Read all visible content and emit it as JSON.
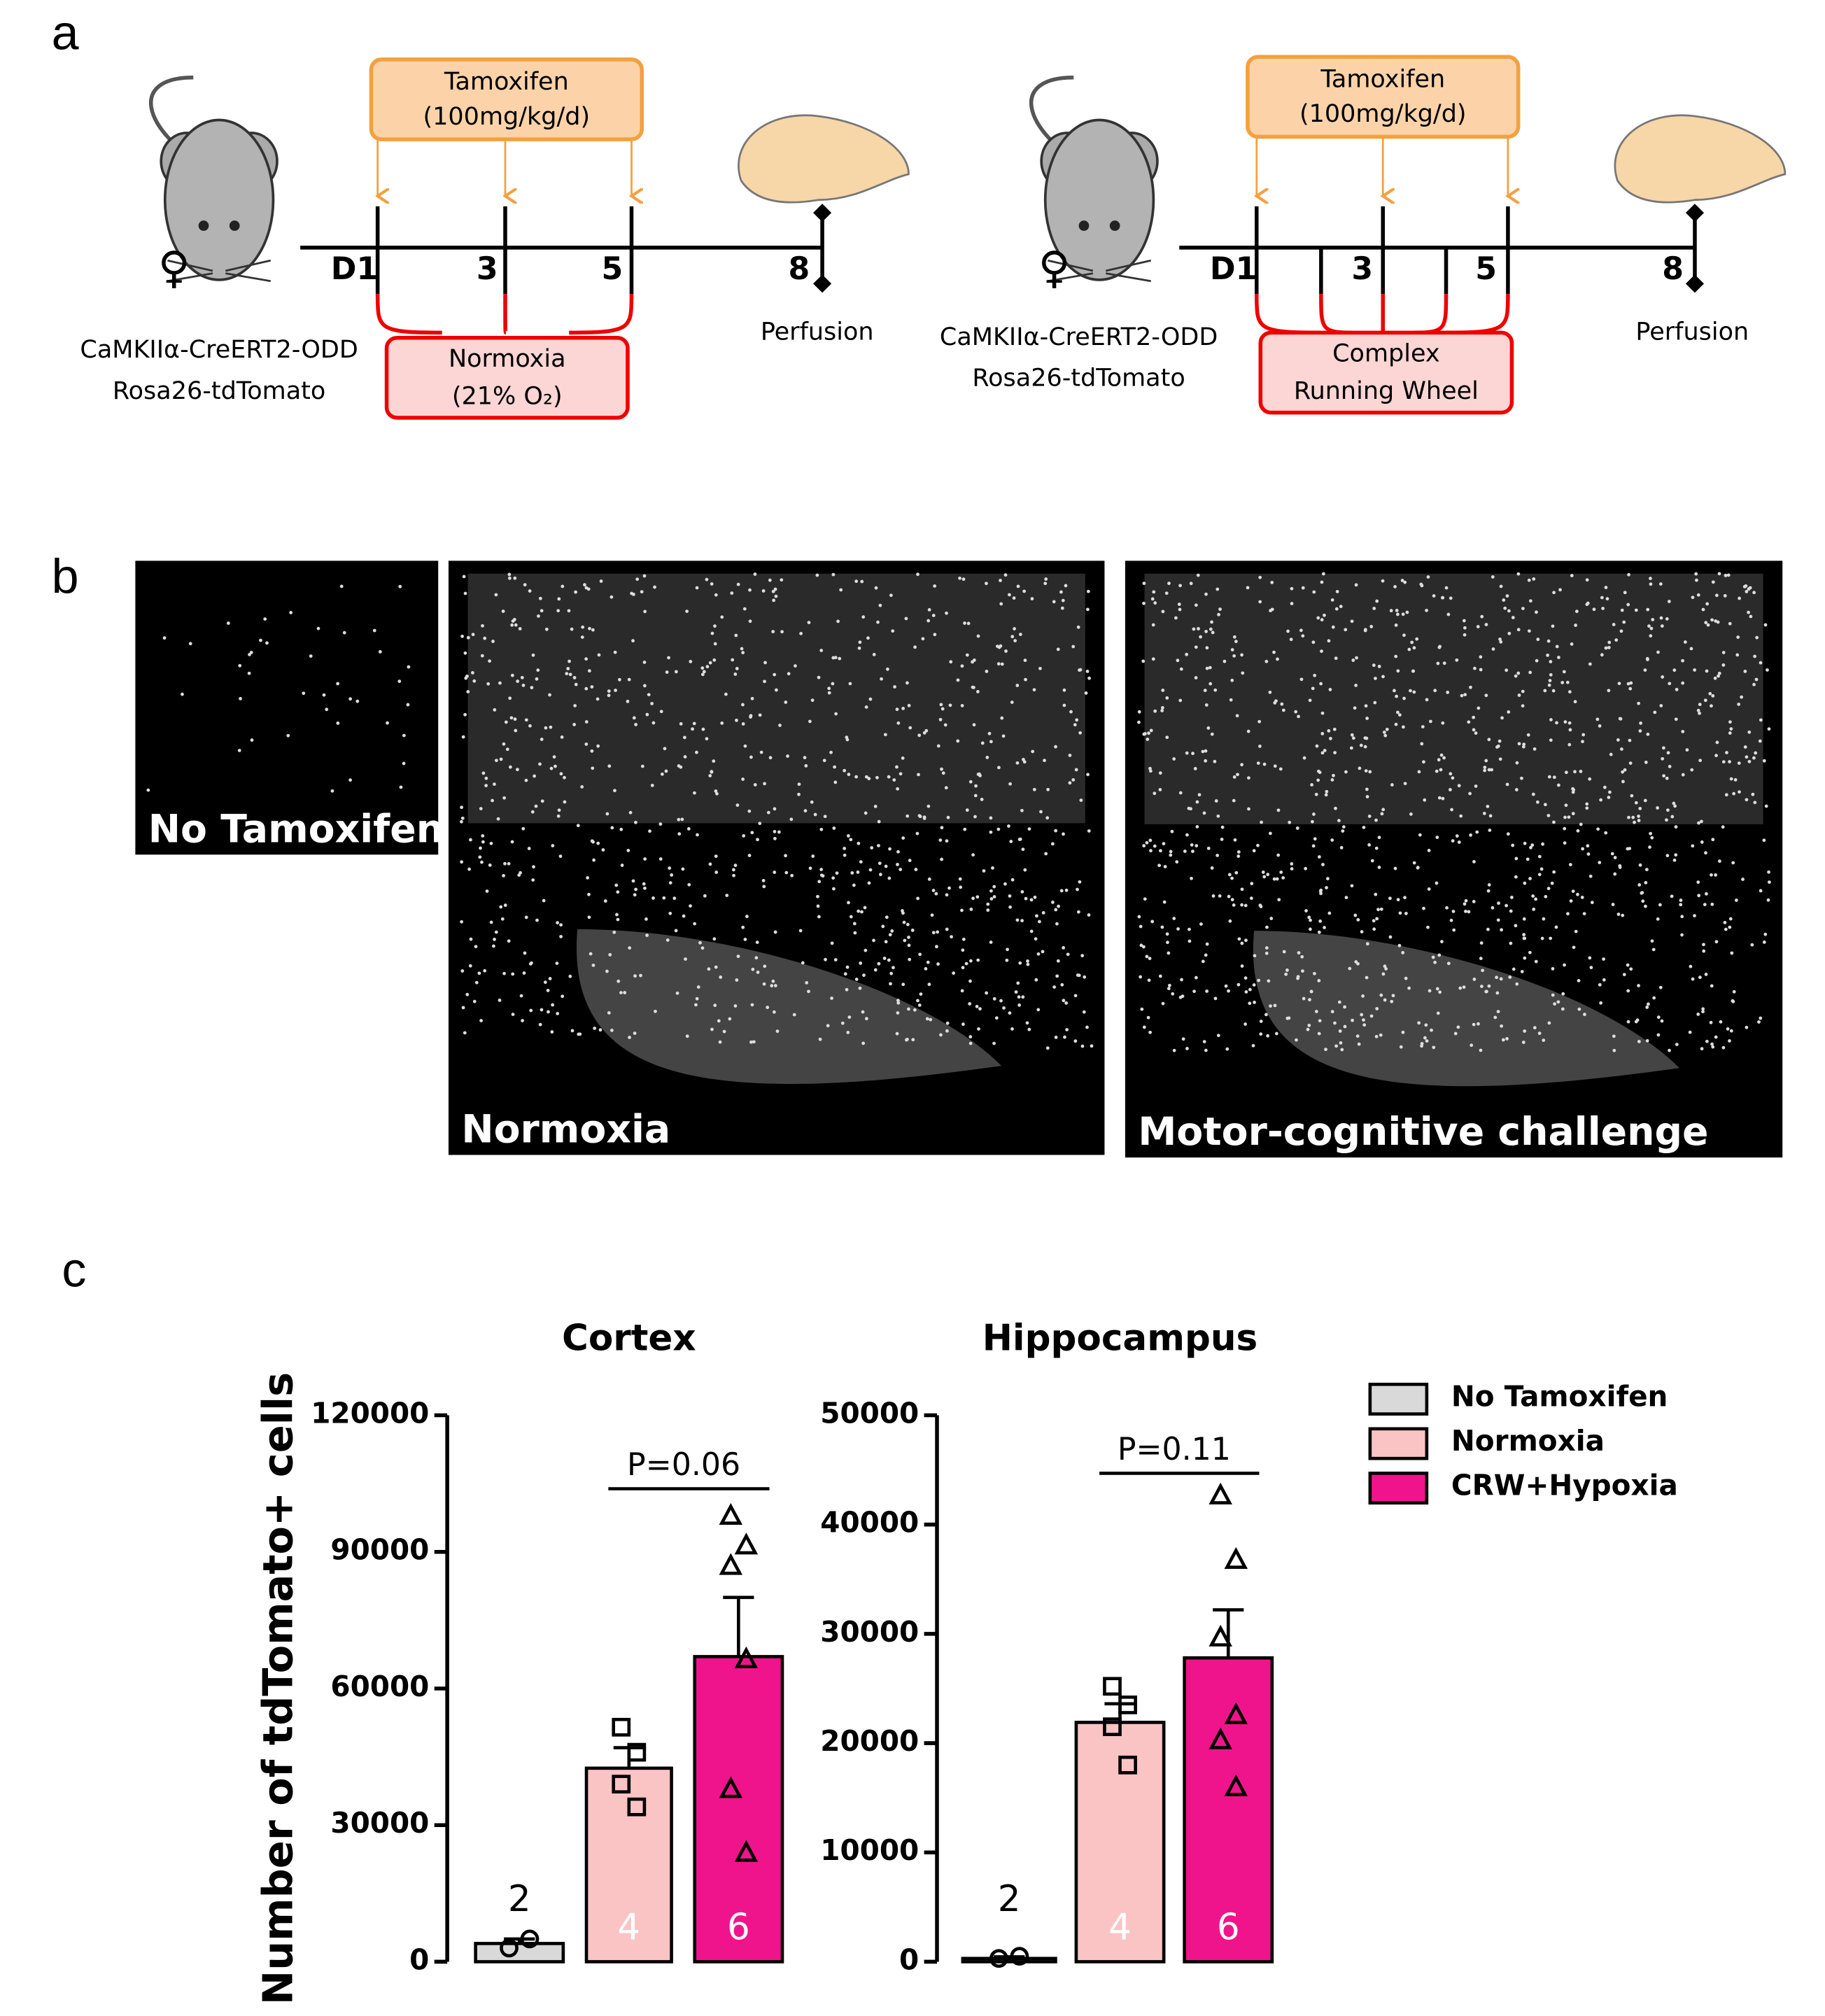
{
  "panels": {
    "a": "a",
    "b": "b",
    "c": "c"
  },
  "diagram": {
    "left": {
      "tamoxifen": "Tamoxifen",
      "dose": "(100mg/kg/d)",
      "days": [
        "D1",
        "3",
        "5",
        "8"
      ],
      "box_line1": "Normoxia",
      "box_line2": "(21% O₂)",
      "strain1": "CaMKIIα-CreERT2-ODD",
      "strain2": "Rosa26-tdTomato",
      "end": "Perfusion"
    },
    "right": {
      "tamoxifen": "Tamoxifen",
      "dose": "(100mg/kg/d)",
      "days": [
        "D1",
        "3",
        "5",
        "8"
      ],
      "box_line1": "Complex",
      "box_line2": "Running Wheel",
      "strain1": "CaMKIIα-CreERT2-ODD",
      "strain2": "Rosa26-tdTomato",
      "end": "Perfusion"
    }
  },
  "images": [
    "No Tamoxifen",
    "Normoxia",
    "Motor-cognitive challenge"
  ],
  "legend": {
    "names": [
      "No Tamoxifen",
      "Normoxia",
      "CRW+Hypoxia"
    ],
    "colors": [
      "#d9d9d9",
      "#fbc4c4",
      "#f0148c"
    ],
    "markers": [
      "circle",
      "square",
      "triangle"
    ]
  },
  "chart_data": [
    {
      "type": "bar",
      "title": "Cortex",
      "ylabel": "Number of tdTomato+ cells",
      "ylim": [
        0,
        120000
      ],
      "yticks": [
        0,
        30000,
        60000,
        90000,
        120000
      ],
      "values": [
        4000,
        42500,
        67000
      ],
      "errors": [
        1000,
        4500,
        13000
      ],
      "points": [
        [
          3000,
          5000
        ],
        [
          51500,
          46000,
          39000,
          34000
        ],
        [
          98000,
          91500,
          87000,
          66500,
          38000,
          24000
        ]
      ],
      "n_labels": [
        "2",
        "4",
        "6"
      ],
      "annotation": "P=0.06"
    },
    {
      "type": "bar",
      "title": "Hippocampus",
      "ylim": [
        0,
        50000
      ],
      "yticks": [
        0,
        10000,
        20000,
        30000,
        40000,
        50000
      ],
      "values": [
        300,
        21900,
        27800
      ],
      "errors": [
        150,
        1700,
        4400
      ],
      "points": [
        [
          300,
          500
        ],
        [
          25200,
          23500,
          21500,
          18000
        ],
        [
          42700,
          36800,
          29700,
          22600,
          20300,
          16000
        ]
      ],
      "n_labels": [
        "2",
        "4",
        "6"
      ],
      "annotation": "P=0.11"
    }
  ]
}
